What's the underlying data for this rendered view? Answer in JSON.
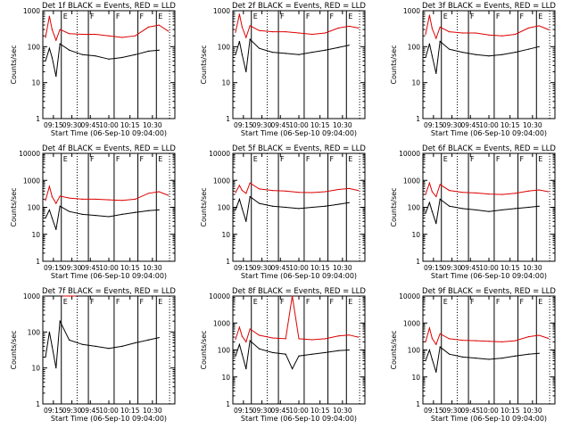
{
  "figure": {
    "xlabel": "Start Time (06-Sep-10 09:04:00)",
    "ylabel": "Counts/sec",
    "x_tick_labels": [
      "09:15",
      "09:30",
      "09:45",
      "10:00",
      "10:15",
      "10:30"
    ],
    "y_tick_labels": [
      "1",
      "10",
      "100",
      "1000",
      "10000"
    ],
    "colors": {
      "events": "#000000",
      "lld": "#dd0000"
    }
  },
  "chart_data": [
    {
      "type": "line",
      "title": "Det 1f BLACK = Events, RED = LLD",
      "ylim": [
        1,
        1000
      ],
      "xlim": [
        0,
        100
      ],
      "markers": [
        "E",
        "F",
        "F",
        "F",
        "E"
      ],
      "series": [
        {
          "name": "Events",
          "color": "#000000",
          "x": [
            2,
            5,
            7,
            10,
            13,
            20,
            30,
            40,
            50,
            60,
            70,
            80,
            88
          ],
          "values": [
            40,
            90,
            50,
            15,
            120,
            80,
            60,
            55,
            45,
            50,
            60,
            75,
            80
          ]
        },
        {
          "name": "LLD",
          "color": "#dd0000",
          "x": [
            2,
            5,
            7,
            10,
            13,
            20,
            30,
            40,
            50,
            60,
            70,
            80,
            88,
            95
          ],
          "values": [
            180,
            700,
            300,
            150,
            300,
            230,
            220,
            220,
            200,
            180,
            200,
            350,
            400,
            270
          ]
        }
      ]
    },
    {
      "type": "line",
      "title": "Det 2f BLACK = Events, RED = LLD",
      "ylim": [
        1,
        1000
      ],
      "xlim": [
        0,
        100
      ],
      "markers": [
        "E",
        "F",
        "F",
        "F",
        "E"
      ],
      "series": [
        {
          "name": "Events",
          "color": "#000000",
          "x": [
            2,
            5,
            7,
            10,
            13,
            20,
            30,
            40,
            50,
            60,
            70,
            80,
            88
          ],
          "values": [
            60,
            140,
            60,
            20,
            160,
            90,
            70,
            65,
            60,
            70,
            80,
            95,
            110
          ]
        },
        {
          "name": "LLD",
          "color": "#dd0000",
          "x": [
            2,
            5,
            7,
            10,
            13,
            20,
            30,
            40,
            50,
            60,
            70,
            80,
            88,
            95
          ],
          "values": [
            250,
            800,
            350,
            180,
            380,
            280,
            260,
            260,
            240,
            220,
            240,
            330,
            370,
            330
          ]
        }
      ]
    },
    {
      "type": "line",
      "title": "Det 3f BLACK = Events, RED = LLD",
      "ylim": [
        1,
        1000
      ],
      "xlim": [
        0,
        100
      ],
      "markers": [
        "E",
        "F",
        "F",
        "F",
        "E"
      ],
      "series": [
        {
          "name": "Events",
          "color": "#000000",
          "x": [
            2,
            5,
            7,
            10,
            13,
            20,
            30,
            40,
            50,
            60,
            70,
            80,
            88
          ],
          "values": [
            50,
            120,
            55,
            18,
            140,
            85,
            70,
            60,
            55,
            60,
            70,
            85,
            100
          ]
        },
        {
          "name": "LLD",
          "color": "#dd0000",
          "x": [
            2,
            5,
            7,
            10,
            13,
            20,
            30,
            40,
            50,
            60,
            70,
            80,
            88,
            95
          ],
          "values": [
            220,
            750,
            320,
            170,
            350,
            260,
            240,
            240,
            210,
            200,
            220,
            330,
            380,
            300
          ]
        }
      ]
    },
    {
      "type": "line",
      "title": "Det 4f BLACK = Events, RED = LLD",
      "ylim": [
        1,
        10000
      ],
      "xlim": [
        0,
        100
      ],
      "markers": [
        "E",
        "F",
        "F",
        "F",
        "E"
      ],
      "series": [
        {
          "name": "Events",
          "color": "#000000",
          "x": [
            2,
            5,
            7,
            10,
            13,
            20,
            30,
            40,
            50,
            60,
            70,
            80,
            88
          ],
          "values": [
            40,
            80,
            40,
            15,
            110,
            70,
            55,
            50,
            45,
            55,
            65,
            75,
            80
          ]
        },
        {
          "name": "LLD",
          "color": "#dd0000",
          "x": [
            2,
            5,
            7,
            10,
            13,
            20,
            30,
            40,
            50,
            60,
            70,
            80,
            88,
            95
          ],
          "values": [
            180,
            600,
            250,
            140,
            260,
            220,
            200,
            200,
            190,
            180,
            200,
            330,
            380,
            280
          ]
        }
      ]
    },
    {
      "type": "line",
      "title": "Det 5f BLACK = Events, RED = LLD",
      "ylim": [
        1,
        10000
      ],
      "xlim": [
        0,
        100
      ],
      "markers": [
        "E",
        "F",
        "F",
        "F",
        "E"
      ],
      "series": [
        {
          "name": "Events",
          "color": "#000000",
          "x": [
            2,
            5,
            7,
            10,
            13,
            20,
            30,
            40,
            50,
            60,
            70,
            80,
            88
          ],
          "values": [
            80,
            200,
            90,
            30,
            250,
            140,
            110,
            100,
            90,
            100,
            110,
            130,
            150
          ]
        },
        {
          "name": "LLD",
          "color": "#dd0000",
          "x": [
            2,
            5,
            7,
            10,
            13,
            20,
            30,
            40,
            50,
            60,
            70,
            80,
            88,
            95
          ],
          "values": [
            350,
            650,
            420,
            330,
            800,
            480,
            420,
            400,
            360,
            350,
            380,
            460,
            500,
            420
          ]
        }
      ]
    },
    {
      "type": "line",
      "title": "Det 6f BLACK = Events, RED = LLD",
      "ylim": [
        1,
        10000
      ],
      "xlim": [
        0,
        100
      ],
      "markers": [
        "E",
        "F",
        "F",
        "F",
        "E"
      ],
      "series": [
        {
          "name": "Events",
          "color": "#000000",
          "x": [
            2,
            5,
            7,
            10,
            13,
            20,
            30,
            40,
            50,
            60,
            70,
            80,
            88
          ],
          "values": [
            60,
            150,
            70,
            25,
            200,
            110,
            90,
            80,
            70,
            80,
            90,
            100,
            110
          ]
        },
        {
          "name": "LLD",
          "color": "#dd0000",
          "x": [
            2,
            5,
            7,
            10,
            13,
            20,
            30,
            40,
            50,
            60,
            70,
            80,
            88,
            95
          ],
          "values": [
            300,
            800,
            380,
            250,
            700,
            420,
            360,
            340,
            310,
            300,
            330,
            400,
            440,
            380
          ]
        }
      ]
    },
    {
      "type": "line",
      "title": "Det 7f BLACK = Events, RED = LLD",
      "ylim": [
        1,
        1000
      ],
      "xlim": [
        0,
        100
      ],
      "markers": [
        "E",
        "F",
        "F",
        "F",
        "E"
      ],
      "series": [
        {
          "name": "Events",
          "color": "#000000",
          "x": [
            2,
            5,
            7,
            10,
            13,
            20,
            30,
            40,
            50,
            60,
            70,
            80,
            88
          ],
          "values": [
            20,
            100,
            40,
            10,
            200,
            60,
            45,
            40,
            35,
            40,
            50,
            60,
            70
          ]
        },
        {
          "name": "LLD",
          "color": "#dd0000",
          "x": [
            15,
            20,
            25
          ],
          "values": [
            1000,
            1000,
            1000
          ]
        }
      ]
    },
    {
      "type": "line",
      "title": "Det 8f BLACK = Events, RED = LLD",
      "ylim": [
        1,
        10000
      ],
      "xlim": [
        0,
        100
      ],
      "markers": [
        "E",
        "F",
        "F",
        "F",
        "E"
      ],
      "series": [
        {
          "name": "Events",
          "color": "#000000",
          "x": [
            2,
            5,
            7,
            10,
            13,
            20,
            30,
            40,
            45,
            50,
            60,
            70,
            80,
            88
          ],
          "values": [
            60,
            160,
            70,
            20,
            220,
            110,
            80,
            70,
            20,
            60,
            70,
            80,
            95,
            100
          ]
        },
        {
          "name": "LLD",
          "color": "#dd0000",
          "x": [
            2,
            5,
            7,
            10,
            13,
            20,
            30,
            40,
            45,
            50,
            60,
            70,
            80,
            88,
            95
          ],
          "values": [
            250,
            700,
            320,
            200,
            600,
            350,
            280,
            260,
            10000,
            260,
            240,
            260,
            330,
            360,
            300
          ]
        }
      ]
    },
    {
      "type": "line",
      "title": "Det 9f BLACK = Events, RED = LLD",
      "ylim": [
        1,
        10000
      ],
      "xlim": [
        0,
        100
      ],
      "markers": [
        "E",
        "F",
        "F",
        "F",
        "E"
      ],
      "series": [
        {
          "name": "Events",
          "color": "#000000",
          "x": [
            2,
            5,
            7,
            10,
            13,
            20,
            30,
            40,
            50,
            60,
            70,
            80,
            88
          ],
          "values": [
            40,
            100,
            45,
            15,
            130,
            70,
            55,
            50,
            45,
            50,
            60,
            70,
            75
          ]
        },
        {
          "name": "LLD",
          "color": "#dd0000",
          "x": [
            2,
            5,
            7,
            10,
            13,
            20,
            30,
            40,
            50,
            60,
            70,
            80,
            88,
            95
          ],
          "values": [
            200,
            650,
            270,
            160,
            400,
            260,
            230,
            220,
            210,
            200,
            220,
            310,
            350,
            270
          ]
        }
      ]
    }
  ]
}
